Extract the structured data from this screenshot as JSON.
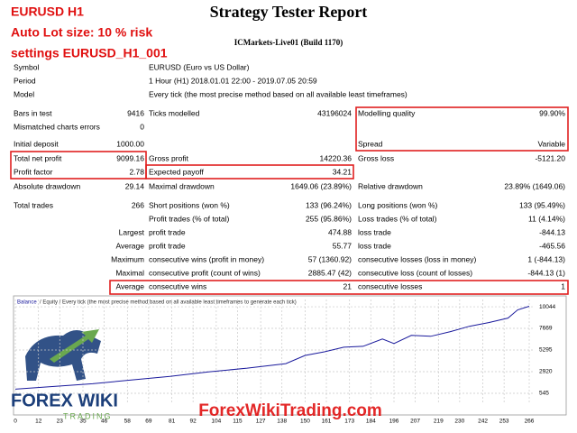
{
  "overlay": [
    "EURUSD H1",
    "Auto Lot size: 10 % risk",
    "settings EURUSD_H1_001"
  ],
  "header": {
    "title": "Strategy Tester Report",
    "server": "ICMarkets-Live01 (Build 1170)"
  },
  "info": [
    {
      "label": "Symbol",
      "value": "EURUSD (Euro vs US Dollar)"
    },
    {
      "label": "Period",
      "value": "1 Hour (H1) 2018.01.01 22:00 - 2019.07.05 20:59"
    },
    {
      "label": "Model",
      "value": "Every tick (the most precise method based on all available least timeframes)"
    }
  ],
  "stats": [
    [
      "Bars in test",
      "9416",
      "Ticks modelled",
      "43196024",
      "Modelling quality",
      "99.90%"
    ],
    [
      "Mismatched charts errors",
      "0",
      null,
      null,
      null,
      null
    ],
    [
      "Initial deposit",
      "1000.00",
      null,
      null,
      "Spread",
      "Variable"
    ],
    [
      "Total net profit",
      "9099.16",
      "Gross profit",
      "14220.36",
      "Gross loss",
      "-5121.20"
    ],
    [
      "Profit factor",
      "2.78",
      "Expected payoff",
      "34.21",
      null,
      null
    ],
    [
      "Absolute drawdown",
      "29.14",
      "Maximal drawdown",
      "1649.06 (23.89%)",
      "Relative drawdown",
      "23.89% (1649.06)"
    ],
    [
      "Total trades",
      "266",
      "Short positions (won %)",
      "133 (96.24%)",
      "Long positions (won %)",
      "133 (95.49%)"
    ],
    [
      null,
      null,
      "Profit trades (% of total)",
      "255 (95.86%)",
      "Loss trades (% of total)",
      "11 (4.14%)"
    ],
    [
      null,
      "Largest",
      "profit trade",
      "474.88",
      "loss trade",
      "-844.13"
    ],
    [
      null,
      "Average",
      "profit trade",
      "55.77",
      "loss trade",
      "-465.56"
    ],
    [
      null,
      "Maximum",
      "consecutive wins (profit in money)",
      "57 (1360.92)",
      "consecutive losses (loss in money)",
      "1 (-844.13)"
    ],
    [
      null,
      "Maximal",
      "consecutive profit (count of wins)",
      "2885.47 (42)",
      "consecutive loss (count of losses)",
      "-844.13 (1)"
    ],
    [
      null,
      "Average",
      "consecutive wins",
      "21",
      "consecutive losses",
      "1"
    ]
  ],
  "watermark": {
    "logo": "FOREX WIKI",
    "logo_sub": "TRADING",
    "site": "ForexWikiTrading.com"
  },
  "chart_data": {
    "type": "line",
    "subtitle": "/ Equity / Every tick (the most precise method based on all available least timeframes to generate each tick)",
    "x": [
      0,
      20,
      40,
      60,
      80,
      100,
      120,
      140,
      150,
      160,
      170,
      180,
      190,
      196,
      205,
      215,
      225,
      235,
      245,
      255,
      260,
      266
    ],
    "series": [
      {
        "name": "Balance",
        "color": "#1a1a9c",
        "values": [
          1000,
          1300,
          1600,
          2000,
          2400,
          2900,
          3300,
          3800,
          4700,
          5100,
          5600,
          5700,
          6500,
          6000,
          6900,
          6800,
          7300,
          7900,
          8300,
          8800,
          9700,
          10100
        ]
      }
    ],
    "xlim": [
      0,
      266
    ],
    "ylim": [
      -50,
      10840
    ],
    "xticks": [
      0,
      12,
      23,
      35,
      46,
      58,
      69,
      81,
      92,
      104,
      115,
      127,
      138,
      150,
      161,
      173,
      184,
      196,
      207,
      219,
      230,
      242,
      253,
      266
    ],
    "yticks": [
      545,
      2920,
      5295,
      7669,
      10044
    ],
    "grid": true
  }
}
